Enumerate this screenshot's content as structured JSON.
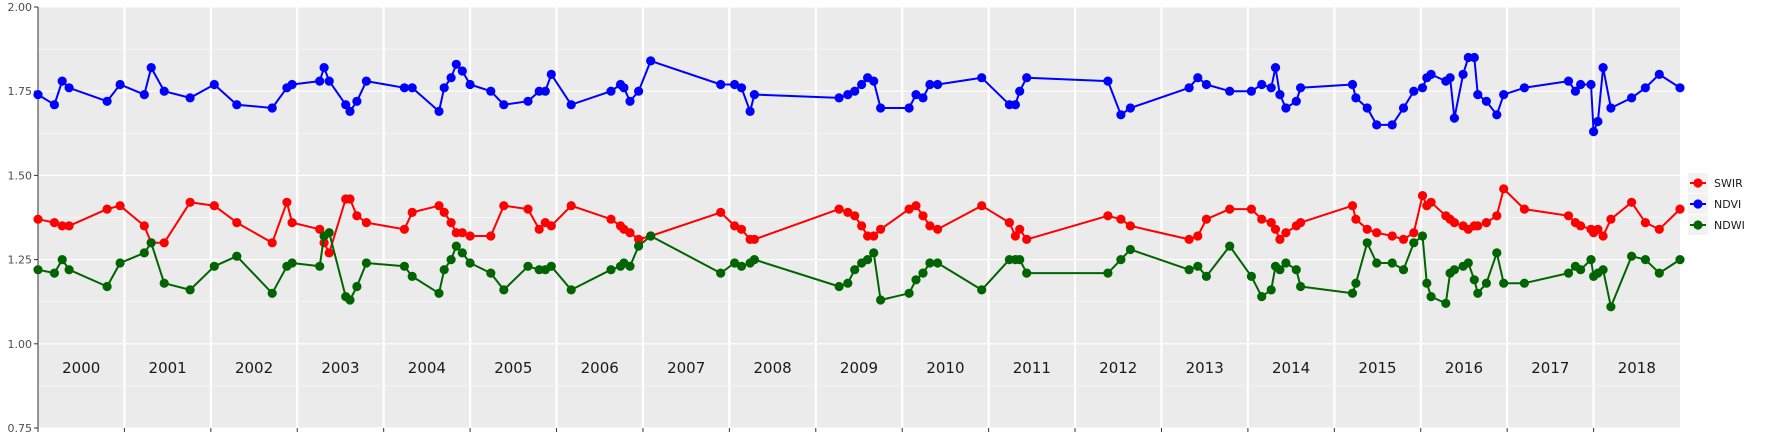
{
  "chart_data": {
    "type": "line",
    "title": "",
    "xlabel": "",
    "ylabel": "",
    "ylim": [
      0.75,
      2.0
    ],
    "yticks": [
      0.75,
      1.0,
      1.25,
      1.5,
      1.75,
      2.0
    ],
    "ytick_labels": [
      "0.75",
      "1.00",
      "1.25",
      "1.50",
      "1.75",
      "2.00"
    ],
    "xlim": [
      2000.0,
      2019.0
    ],
    "years": [
      2000,
      2001,
      2002,
      2003,
      2004,
      2005,
      2006,
      2007,
      2008,
      2009,
      2010,
      2011,
      2012,
      2013,
      2014,
      2015,
      2016,
      2017,
      2018
    ],
    "grid": true,
    "legend_position": "right",
    "series": [
      {
        "name": "SWIR",
        "color": "#ff0000",
        "x": [
          2000.0,
          2000.19,
          2000.28,
          2000.36,
          2000.8,
          2000.95,
          2001.23,
          2001.31,
          2001.46,
          2001.76,
          2002.04,
          2002.3,
          2002.71,
          2002.88,
          2002.94,
          2003.26,
          2003.31,
          2003.37,
          2003.56,
          2003.61,
          2003.69,
          2003.8,
          2004.24,
          2004.33,
          2004.64,
          2004.7,
          2004.78,
          2004.84,
          2004.91,
          2005.0,
          2005.24,
          2005.39,
          2005.67,
          2005.8,
          2005.87,
          2005.94,
          2006.17,
          2006.63,
          2006.74,
          2006.78,
          2006.85,
          2006.95,
          2007.09,
          2007.9,
          2008.06,
          2008.14,
          2008.24,
          2008.29,
          2009.27,
          2009.37,
          2009.45,
          2009.53,
          2009.6,
          2009.67,
          2009.75,
          2010.08,
          2010.16,
          2010.24,
          2010.32,
          2010.41,
          2010.92,
          2011.24,
          2011.31,
          2011.36,
          2011.44,
          2012.38,
          2012.53,
          2012.64,
          2013.32,
          2013.42,
          2013.52,
          2013.79,
          2014.04,
          2014.16,
          2014.27,
          2014.32,
          2014.37,
          2014.44,
          2014.56,
          2014.61,
          2015.21,
          2015.25,
          2015.38,
          2015.49,
          2015.67,
          2015.8,
          2015.92,
          2016.02,
          2016.07,
          2016.12,
          2016.29,
          2016.34,
          2016.39,
          2016.49,
          2016.55,
          2016.62,
          2016.66,
          2016.76,
          2016.88,
          2016.96,
          2017.2,
          2017.71,
          2017.79,
          2017.85,
          2017.97,
          2018.0,
          2018.05,
          2018.11,
          2018.2,
          2018.44,
          2018.6,
          2018.76,
          2019.0
        ],
        "y": [
          1.37,
          1.36,
          1.35,
          1.35,
          1.4,
          1.41,
          1.35,
          1.3,
          1.3,
          1.42,
          1.41,
          1.36,
          1.3,
          1.42,
          1.36,
          1.34,
          1.3,
          1.27,
          1.43,
          1.43,
          1.38,
          1.36,
          1.34,
          1.39,
          1.41,
          1.39,
          1.36,
          1.33,
          1.33,
          1.32,
          1.32,
          1.41,
          1.4,
          1.34,
          1.36,
          1.35,
          1.41,
          1.37,
          1.35,
          1.34,
          1.33,
          1.31,
          1.32,
          1.39,
          1.35,
          1.34,
          1.31,
          1.31,
          1.4,
          1.39,
          1.38,
          1.35,
          1.32,
          1.32,
          1.34,
          1.4,
          1.41,
          1.38,
          1.35,
          1.34,
          1.41,
          1.36,
          1.32,
          1.34,
          1.31,
          1.38,
          1.37,
          1.35,
          1.31,
          1.32,
          1.37,
          1.4,
          1.4,
          1.37,
          1.36,
          1.34,
          1.31,
          1.33,
          1.35,
          1.36,
          1.41,
          1.37,
          1.34,
          1.33,
          1.32,
          1.31,
          1.33,
          1.44,
          1.41,
          1.42,
          1.38,
          1.37,
          1.36,
          1.35,
          1.34,
          1.35,
          1.35,
          1.36,
          1.38,
          1.46,
          1.4,
          1.38,
          1.36,
          1.35,
          1.34,
          1.33,
          1.34,
          1.32,
          1.37,
          1.42,
          1.36,
          1.34,
          1.4
        ]
      },
      {
        "name": "NDVI",
        "color": "#0000ff",
        "x": [
          2000.0,
          2000.19,
          2000.28,
          2000.36,
          2000.8,
          2000.95,
          2001.23,
          2001.31,
          2001.46,
          2001.76,
          2002.04,
          2002.3,
          2002.71,
          2002.88,
          2002.94,
          2003.26,
          2003.31,
          2003.37,
          2003.56,
          2003.61,
          2003.69,
          2003.8,
          2004.24,
          2004.33,
          2004.64,
          2004.7,
          2004.78,
          2004.84,
          2004.91,
          2005.0,
          2005.24,
          2005.39,
          2005.67,
          2005.8,
          2005.87,
          2005.94,
          2006.17,
          2006.63,
          2006.74,
          2006.78,
          2006.85,
          2006.95,
          2007.09,
          2007.9,
          2008.06,
          2008.14,
          2008.24,
          2008.29,
          2009.27,
          2009.37,
          2009.45,
          2009.53,
          2009.6,
          2009.67,
          2009.75,
          2010.08,
          2010.16,
          2010.24,
          2010.32,
          2010.41,
          2010.92,
          2011.24,
          2011.31,
          2011.36,
          2011.44,
          2012.38,
          2012.53,
          2012.64,
          2013.32,
          2013.42,
          2013.52,
          2013.79,
          2014.04,
          2014.16,
          2014.27,
          2014.32,
          2014.37,
          2014.44,
          2014.56,
          2014.61,
          2015.21,
          2015.25,
          2015.38,
          2015.49,
          2015.67,
          2015.8,
          2015.92,
          2016.02,
          2016.07,
          2016.12,
          2016.29,
          2016.34,
          2016.39,
          2016.49,
          2016.55,
          2016.62,
          2016.66,
          2016.76,
          2016.88,
          2016.96,
          2017.2,
          2017.71,
          2017.79,
          2017.85,
          2017.97,
          2018.0,
          2018.05,
          2018.11,
          2018.2,
          2018.44,
          2018.6,
          2018.76,
          2019.0
        ],
        "y": [
          1.74,
          1.71,
          1.78,
          1.76,
          1.72,
          1.77,
          1.74,
          1.82,
          1.75,
          1.73,
          1.77,
          1.71,
          1.7,
          1.76,
          1.77,
          1.78,
          1.82,
          1.78,
          1.71,
          1.69,
          1.72,
          1.78,
          1.76,
          1.76,
          1.69,
          1.76,
          1.79,
          1.83,
          1.81,
          1.77,
          1.75,
          1.71,
          1.72,
          1.75,
          1.75,
          1.8,
          1.71,
          1.75,
          1.77,
          1.76,
          1.72,
          1.75,
          1.84,
          1.77,
          1.77,
          1.76,
          1.69,
          1.74,
          1.73,
          1.74,
          1.75,
          1.77,
          1.79,
          1.78,
          1.7,
          1.7,
          1.74,
          1.73,
          1.77,
          1.77,
          1.79,
          1.71,
          1.71,
          1.75,
          1.79,
          1.78,
          1.68,
          1.7,
          1.76,
          1.79,
          1.77,
          1.75,
          1.75,
          1.77,
          1.76,
          1.82,
          1.74,
          1.7,
          1.72,
          1.76,
          1.77,
          1.73,
          1.7,
          1.65,
          1.65,
          1.7,
          1.75,
          1.76,
          1.79,
          1.8,
          1.78,
          1.79,
          1.67,
          1.8,
          1.85,
          1.85,
          1.74,
          1.72,
          1.68,
          1.74,
          1.76,
          1.78,
          1.75,
          1.77,
          1.77,
          1.63,
          1.66,
          1.82,
          1.7,
          1.73,
          1.76,
          1.8,
          1.76
        ]
      },
      {
        "name": "NDWI",
        "color": "#006400",
        "x": [
          2000.0,
          2000.19,
          2000.28,
          2000.36,
          2000.8,
          2000.95,
          2001.23,
          2001.31,
          2001.46,
          2001.76,
          2002.04,
          2002.3,
          2002.71,
          2002.88,
          2002.94,
          2003.26,
          2003.31,
          2003.37,
          2003.56,
          2003.61,
          2003.69,
          2003.8,
          2004.24,
          2004.33,
          2004.64,
          2004.7,
          2004.78,
          2004.84,
          2004.91,
          2005.0,
          2005.24,
          2005.39,
          2005.67,
          2005.8,
          2005.87,
          2005.94,
          2006.17,
          2006.63,
          2006.74,
          2006.78,
          2006.85,
          2006.95,
          2007.09,
          2007.9,
          2008.06,
          2008.14,
          2008.24,
          2008.29,
          2009.27,
          2009.37,
          2009.45,
          2009.53,
          2009.6,
          2009.67,
          2009.75,
          2010.08,
          2010.16,
          2010.24,
          2010.32,
          2010.41,
          2010.92,
          2011.24,
          2011.31,
          2011.36,
          2011.44,
          2012.38,
          2012.53,
          2012.64,
          2013.32,
          2013.42,
          2013.52,
          2013.79,
          2014.04,
          2014.16,
          2014.27,
          2014.32,
          2014.37,
          2014.44,
          2014.56,
          2014.61,
          2015.21,
          2015.25,
          2015.38,
          2015.49,
          2015.67,
          2015.8,
          2015.92,
          2016.02,
          2016.07,
          2016.12,
          2016.29,
          2016.34,
          2016.39,
          2016.49,
          2016.55,
          2016.62,
          2016.66,
          2016.76,
          2016.88,
          2016.96,
          2017.2,
          2017.71,
          2017.79,
          2017.85,
          2017.97,
          2018.0,
          2018.05,
          2018.11,
          2018.2,
          2018.44,
          2018.6,
          2018.76,
          2019.0
        ],
        "y": [
          1.22,
          1.21,
          1.25,
          1.22,
          1.17,
          1.24,
          1.27,
          1.3,
          1.18,
          1.16,
          1.23,
          1.26,
          1.15,
          1.23,
          1.24,
          1.23,
          1.32,
          1.33,
          1.14,
          1.13,
          1.17,
          1.24,
          1.23,
          1.2,
          1.15,
          1.22,
          1.25,
          1.29,
          1.27,
          1.24,
          1.21,
          1.16,
          1.23,
          1.22,
          1.22,
          1.23,
          1.16,
          1.22,
          1.23,
          1.24,
          1.23,
          1.29,
          1.32,
          1.21,
          1.24,
          1.23,
          1.24,
          1.25,
          1.17,
          1.18,
          1.22,
          1.24,
          1.25,
          1.27,
          1.13,
          1.15,
          1.19,
          1.21,
          1.24,
          1.24,
          1.16,
          1.25,
          1.25,
          1.25,
          1.21,
          1.21,
          1.25,
          1.28,
          1.22,
          1.23,
          1.2,
          1.29,
          1.2,
          1.14,
          1.16,
          1.23,
          1.22,
          1.24,
          1.22,
          1.17,
          1.15,
          1.18,
          1.3,
          1.24,
          1.24,
          1.22,
          1.3,
          1.32,
          1.18,
          1.14,
          1.12,
          1.21,
          1.22,
          1.23,
          1.24,
          1.19,
          1.15,
          1.18,
          1.27,
          1.18,
          1.18,
          1.21,
          1.23,
          1.22,
          1.25,
          1.2,
          1.21,
          1.22,
          1.11,
          1.26,
          1.25,
          1.21,
          1.25
        ]
      }
    ],
    "legend_order": [
      "SWIR",
      "NDVI",
      "NDWI"
    ]
  }
}
